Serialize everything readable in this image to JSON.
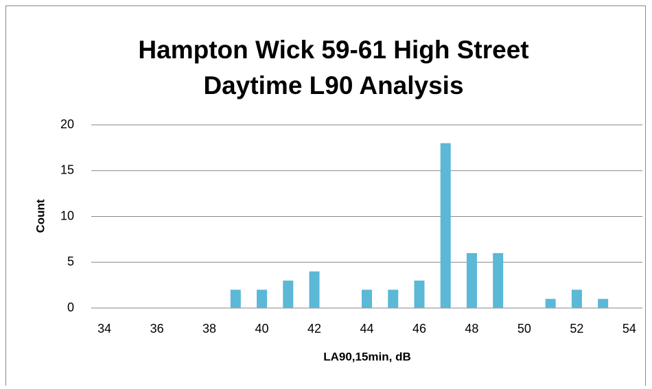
{
  "chart_data": {
    "type": "bar",
    "title": [
      "Hampton Wick 59-61 High Street",
      "Daytime L90 Analysis"
    ],
    "x_label": "LA90,15min, dB",
    "y_label": "Count",
    "categories": [
      "34",
      null,
      "36",
      null,
      "38",
      null,
      "40",
      null,
      "42",
      null,
      "44",
      null,
      "46",
      null,
      "48",
      null,
      "50",
      null,
      "52",
      null,
      "54"
    ],
    "values": [
      0,
      0,
      0,
      0,
      0,
      2,
      2,
      3,
      4,
      0,
      2,
      2,
      3,
      18,
      6,
      6,
      0,
      1,
      2,
      1,
      0
    ],
    "color": "#5bb8d6",
    "ylim": [
      0,
      20
    ],
    "yticks": [
      0,
      5,
      10,
      15,
      20
    ],
    "grid": true
  }
}
